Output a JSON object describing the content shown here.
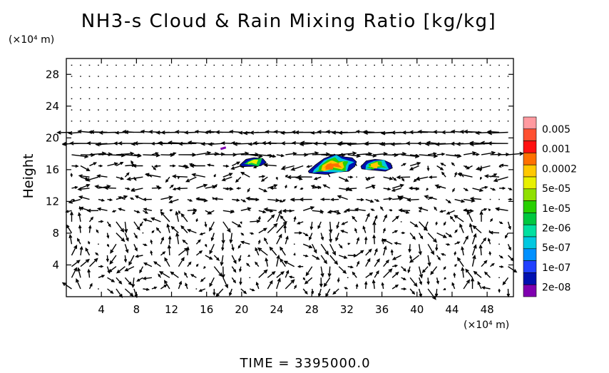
{
  "chart_data": {
    "type": "heatmap",
    "title": "NH3-s Cloud & Rain Mixing Ratio [kg/kg]",
    "ylabel": "Height",
    "x_unit": "(×10⁴ m)",
    "y_unit": "(×10⁴ m)",
    "xlim": [
      0,
      51
    ],
    "ylim": [
      0,
      30
    ],
    "xticks": [
      4,
      8,
      12,
      16,
      20,
      24,
      28,
      32,
      36,
      40,
      44,
      48
    ],
    "yticks": [
      4,
      8,
      12,
      16,
      20,
      24,
      28
    ],
    "colorbar": {
      "labels": [
        "0.005",
        "0.001",
        "0.0002",
        "5e-05",
        "1e-05",
        "2e-06",
        "5e-07",
        "1e-07",
        "2e-08"
      ],
      "colors": [
        "#ff9aa0",
        "#ff5030",
        "#ff1010",
        "#ff7000",
        "#ffc800",
        "#e8f000",
        "#90e000",
        "#28d000",
        "#00c840",
        "#00e0a0",
        "#00c8e0",
        "#0090ff",
        "#2040ff",
        "#0010b0",
        "#8000b0"
      ]
    },
    "cloud_patches": [
      {
        "x": [
          19.8,
          20.5,
          21.4,
          22.4,
          22.8,
          22.2,
          21.0,
          20.1
        ],
        "y": [
          16.6,
          17.3,
          17.5,
          17.4,
          16.9,
          16.5,
          16.4,
          16.4
        ],
        "levels": [
          "#0010b0",
          "#00c840",
          "#e8f000"
        ]
      },
      {
        "x": [
          27.6,
          28.4,
          29.4,
          30.6,
          31.8,
          32.6,
          33.1,
          32.9,
          32.2,
          31.0,
          29.6,
          28.4,
          27.7
        ],
        "y": [
          15.8,
          16.6,
          17.4,
          17.9,
          17.6,
          17.5,
          17.0,
          16.4,
          15.8,
          15.7,
          15.4,
          15.5,
          15.6
        ],
        "levels": [
          "#0010b0",
          "#00c8e0",
          "#28d000",
          "#ffc800",
          "#ff7000"
        ]
      },
      {
        "x": [
          33.6,
          34.2,
          35.2,
          36.2,
          37.0,
          37.2,
          36.4,
          35.4,
          34.4,
          33.7
        ],
        "y": [
          16.4,
          17.1,
          17.3,
          17.2,
          16.8,
          16.2,
          15.8,
          15.9,
          16.0,
          16.1
        ],
        "levels": [
          "#0010b0",
          "#00c8e0",
          "#28d000",
          "#ffc800"
        ]
      },
      {
        "x": [
          17.6,
          18.2
        ],
        "y": [
          18.6,
          18.8
        ],
        "levels": [
          "#8000b0"
        ]
      }
    ],
    "wind_vectors": "quiver field (u, w) on a ~50×21 grid"
  },
  "footer": {
    "time_label": "TIME = 3395000.0"
  }
}
